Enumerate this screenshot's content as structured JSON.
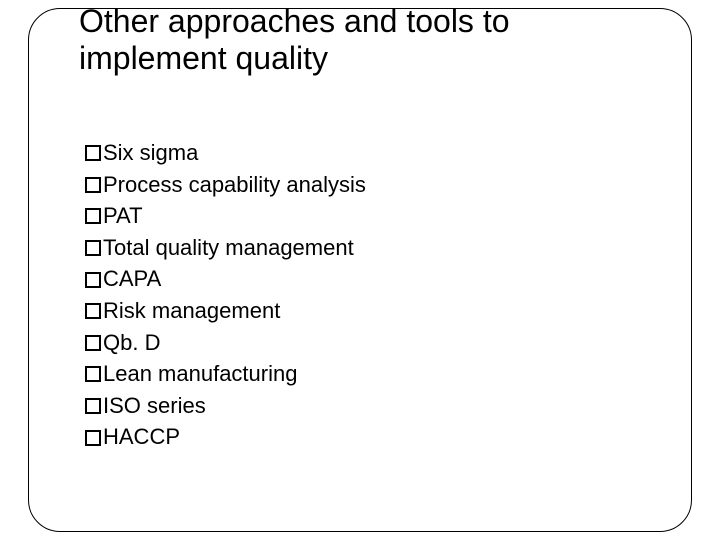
{
  "slide": {
    "title": "Other approaches and tools to implement quality",
    "items": [
      "Six sigma",
      "Process capability analysis",
      "PAT",
      "Total quality management",
      "CAPA",
      "Risk management",
      "Qb. D",
      "Lean manufacturing",
      "ISO series",
      "HACCP"
    ],
    "title_fontsize": 32,
    "item_fontsize": 22,
    "text_color": "#000000",
    "border_color": "#000000",
    "background_color": "#ffffff",
    "border_radius": 32,
    "bullet_box_size": 16,
    "bullet_border_width": 2
  }
}
